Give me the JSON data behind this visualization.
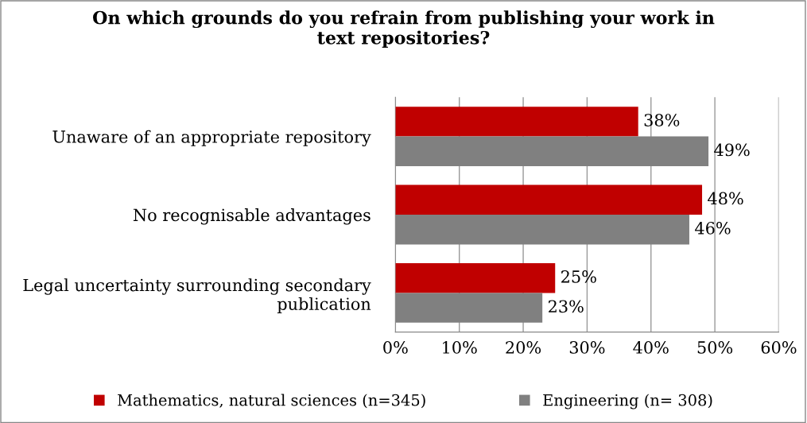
{
  "chart_data": {
    "type": "bar",
    "orientation": "horizontal",
    "title": "On which grounds do you refrain from publishing your work in\ntext repositories?",
    "categories": [
      "Unaware of an appropriate repository",
      "No recognisable advantages",
      "Legal uncertainty surrounding secondary\npublication"
    ],
    "series": [
      {
        "name": "Mathematics, natural sciences (n=345)",
        "color": "#c00000",
        "values": [
          38,
          48,
          25
        ],
        "value_labels": [
          "38%",
          "48%",
          "25%"
        ]
      },
      {
        "name": "Engineering (n= 308)",
        "color": "#808080",
        "values": [
          49,
          46,
          23
        ],
        "value_labels": [
          "49%",
          "46%",
          "23%"
        ]
      }
    ],
    "xlim": [
      0,
      60
    ],
    "xticks": [
      {
        "value": 0,
        "label": "0%"
      },
      {
        "value": 10,
        "label": "10%"
      },
      {
        "value": 20,
        "label": "20%"
      },
      {
        "value": 30,
        "label": "30%"
      },
      {
        "value": 40,
        "label": "40%"
      },
      {
        "value": 50,
        "label": "50%"
      },
      {
        "value": 60,
        "label": "60%"
      }
    ],
    "grid": "x",
    "legend": "bottom"
  }
}
